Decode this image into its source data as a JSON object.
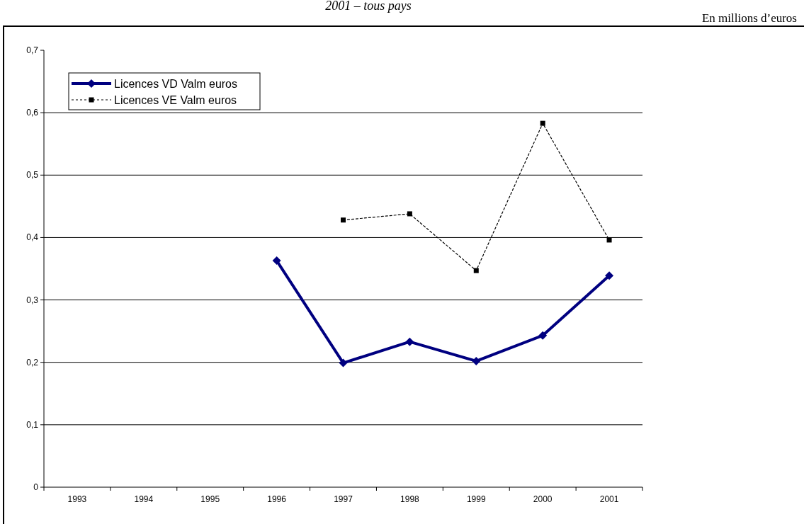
{
  "chart_data": {
    "type": "line",
    "title": "2001 – tous pays",
    "annotations": [
      "En millions d’euros"
    ],
    "categories": [
      "1993",
      "1994",
      "1995",
      "1996",
      "1997",
      "1998",
      "1999",
      "2000",
      "2001"
    ],
    "series": [
      {
        "name": "Licences VD Valm euros",
        "color": "#000080",
        "marker": "diamond",
        "line_style": "solid",
        "values": [
          null,
          null,
          null,
          0.363,
          0.199,
          0.233,
          0.202,
          0.243,
          0.339
        ]
      },
      {
        "name": "Licences VE Valm euros",
        "color": "#000000",
        "marker": "square",
        "line_style": "dotted",
        "values": [
          null,
          null,
          null,
          null,
          0.428,
          0.438,
          0.347,
          0.583,
          0.396
        ]
      }
    ],
    "ylim": [
      0,
      0.7
    ],
    "yticks": [
      {
        "value": 0,
        "label": "0"
      },
      {
        "value": 0.1,
        "label": "0,1"
      },
      {
        "value": 0.2,
        "label": "0,2"
      },
      {
        "value": 0.3,
        "label": "0,3"
      },
      {
        "value": 0.4,
        "label": "0,4"
      },
      {
        "value": 0.5,
        "label": "0,5"
      },
      {
        "value": 0.6,
        "label": "0,6"
      },
      {
        "value": 0.7,
        "label": "0,7"
      }
    ],
    "grid": "y",
    "legend": "top left"
  }
}
